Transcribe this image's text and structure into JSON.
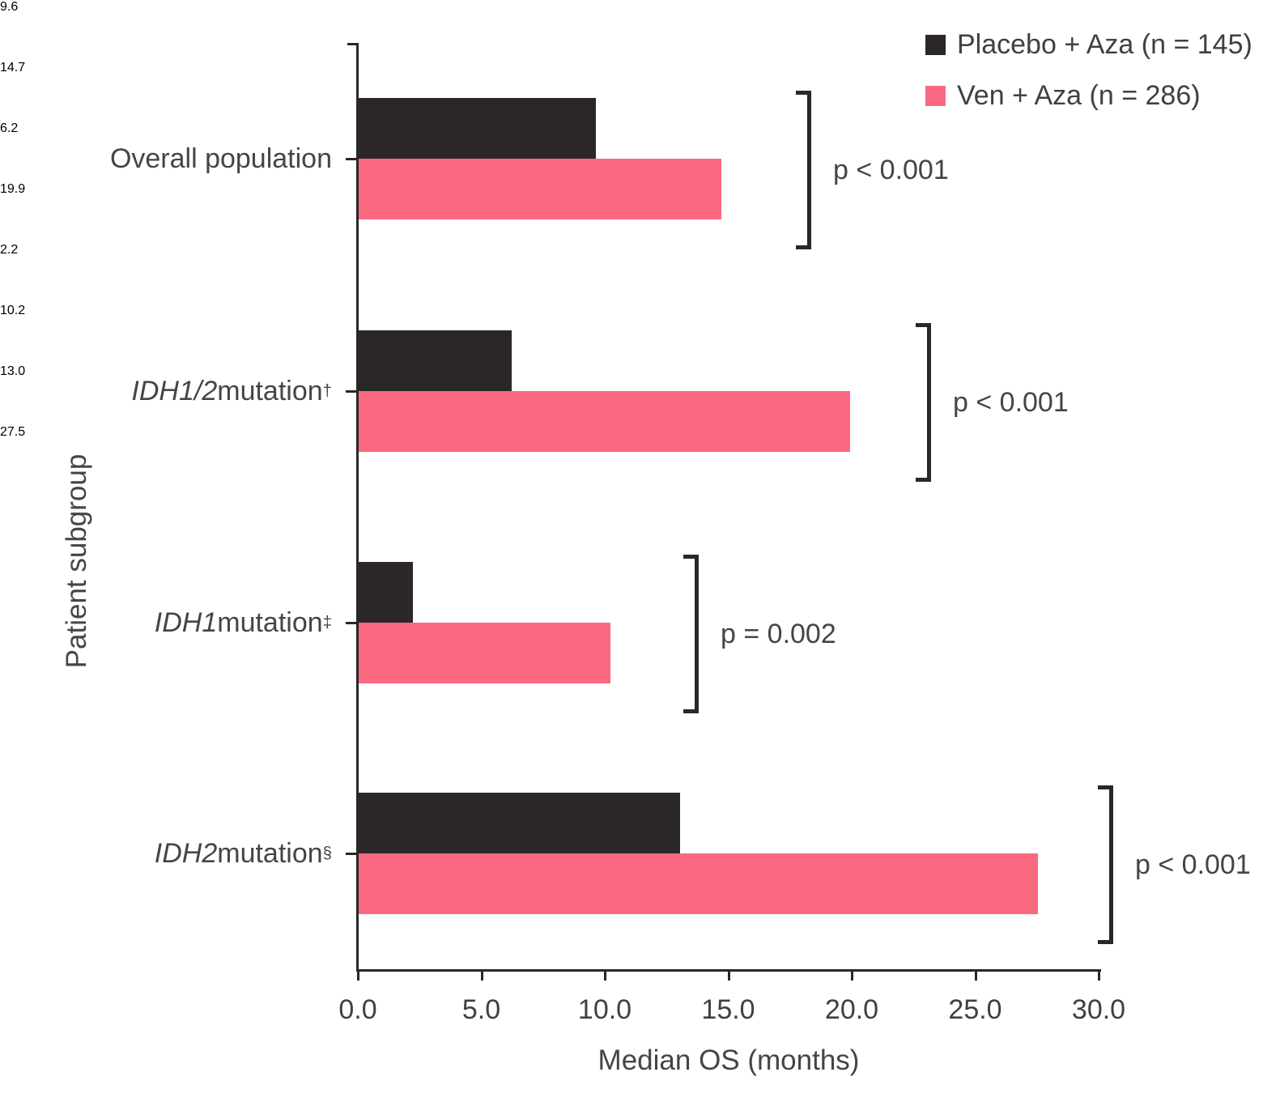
{
  "legend": {
    "items": [
      {
        "label": "Placebo + Aza (n = 145)",
        "color": "#2B2627",
        "swatch_icon": "black-square-icon"
      },
      {
        "label": "Ven + Aza (n = 286)",
        "color": "#FA6980",
        "swatch_icon": "pink-square-icon"
      }
    ]
  },
  "chart_data": {
    "type": "bar",
    "orientation": "horizontal",
    "title": "",
    "xlabel": "Median OS (months)",
    "ylabel": "Patient subgroup",
    "xlim": [
      0,
      30
    ],
    "x_tick_labels": [
      "0.0",
      "5.0",
      "10.0",
      "15.0",
      "20.0",
      "25.0",
      "30.0"
    ],
    "x_tick_values": [
      0,
      5,
      10,
      15,
      20,
      25,
      30
    ],
    "grid": false,
    "legend_position": "top-right",
    "categories": [
      {
        "italic": "",
        "text": "Overall population",
        "sup": ""
      },
      {
        "italic": "IDH1/2",
        "text": " mutation",
        "sup": "†"
      },
      {
        "italic": "IDH1",
        "text": " mutation",
        "sup": "‡"
      },
      {
        "italic": "IDH2",
        "text": " mutation",
        "sup": "§"
      }
    ],
    "series": [
      {
        "name": "Placebo + Aza (n = 145)",
        "color": "#2B2627",
        "values": [
          9.6,
          6.2,
          2.2,
          13.0
        ],
        "value_labels": [
          "9.6",
          "6.2",
          "2.2",
          "13.0"
        ]
      },
      {
        "name": "Ven + Aza (n = 286)",
        "color": "#FA6980",
        "values": [
          14.7,
          19.9,
          10.2,
          27.5
        ],
        "value_labels": [
          "14.7",
          "19.9",
          "10.2",
          "27.5"
        ]
      }
    ],
    "p_values": [
      "p < 0.001",
      "p < 0.001",
      "p = 0.002",
      "p < 0.001"
    ]
  }
}
